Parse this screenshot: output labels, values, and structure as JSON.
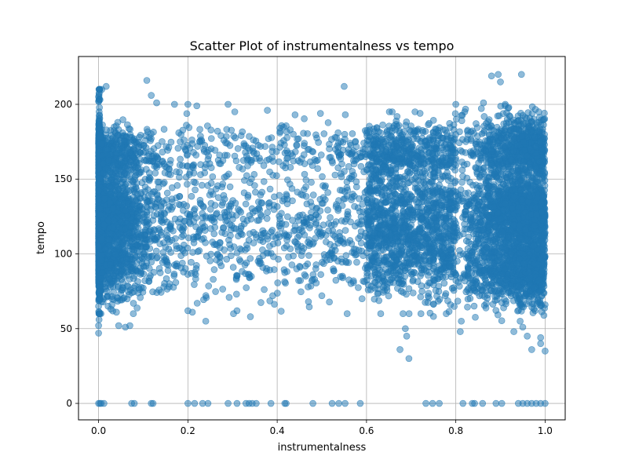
{
  "chart_data": {
    "type": "scatter",
    "title": "Scatter Plot of instrumentalness vs tempo",
    "xlabel": "instrumentalness",
    "ylabel": "tempo",
    "xlim": [
      -0.045,
      1.045
    ],
    "ylim": [
      -11,
      232
    ],
    "xticks": [
      0.0,
      0.2,
      0.4,
      0.6,
      0.8,
      1.0
    ],
    "xtick_labels": [
      "0.0",
      "0.2",
      "0.4",
      "0.6",
      "0.8",
      "1.0"
    ],
    "yticks": [
      0,
      50,
      100,
      150,
      200
    ],
    "ytick_labels": [
      "0",
      "50",
      "100",
      "150",
      "200"
    ],
    "grid": true,
    "legend": "none",
    "marker_color": "#1f77b4",
    "marker_alpha": 0.5,
    "series": [
      {
        "points": [
          [
            0.0,
            0
          ],
          [
            0.003,
            0
          ],
          [
            0.006,
            0
          ],
          [
            0.012,
            0
          ],
          [
            0.074,
            0
          ],
          [
            0.08,
            0
          ],
          [
            0.118,
            0
          ],
          [
            0.122,
            0
          ],
          [
            0.2,
            0
          ],
          [
            0.215,
            0
          ],
          [
            0.233,
            0
          ],
          [
            0.245,
            0
          ],
          [
            0.29,
            0
          ],
          [
            0.31,
            0
          ],
          [
            0.33,
            0
          ],
          [
            0.337,
            0
          ],
          [
            0.344,
            0
          ],
          [
            0.353,
            0
          ],
          [
            0.386,
            0
          ],
          [
            0.417,
            0
          ],
          [
            0.42,
            0
          ],
          [
            0.48,
            0
          ],
          [
            0.523,
            0
          ],
          [
            0.538,
            0
          ],
          [
            0.552,
            0
          ],
          [
            0.586,
            0
          ],
          [
            0.733,
            0
          ],
          [
            0.748,
            0
          ],
          [
            0.763,
            0
          ],
          [
            0.816,
            0
          ],
          [
            0.837,
            0
          ],
          [
            0.842,
            0
          ],
          [
            0.86,
            0
          ],
          [
            0.89,
            0
          ],
          [
            0.903,
            0
          ],
          [
            0.94,
            0
          ],
          [
            0.95,
            0
          ],
          [
            0.96,
            0
          ],
          [
            0.97,
            0
          ],
          [
            0.98,
            0
          ],
          [
            0.99,
            0
          ],
          [
            1.0,
            0
          ],
          [
            0.0,
            47
          ],
          [
            0.0,
            52
          ],
          [
            0.001,
            56
          ],
          [
            0.002,
            60
          ],
          [
            0.0,
            65
          ],
          [
            0.003,
            70
          ],
          [
            0.001,
            75
          ],
          [
            0.0,
            202
          ],
          [
            0.0,
            205
          ],
          [
            0.001,
            207
          ],
          [
            0.002,
            210
          ],
          [
            0.017,
            212
          ],
          [
            0.03,
            66
          ],
          [
            0.04,
            61
          ],
          [
            0.045,
            52
          ],
          [
            0.06,
            51
          ],
          [
            0.07,
            52
          ],
          [
            0.108,
            216
          ],
          [
            0.118,
            206
          ],
          [
            0.13,
            201
          ],
          [
            0.17,
            200
          ],
          [
            0.2,
            200
          ],
          [
            0.22,
            199
          ],
          [
            0.29,
            200
          ],
          [
            0.305,
            195
          ],
          [
            0.378,
            196
          ],
          [
            0.44,
            193
          ],
          [
            0.55,
            212
          ],
          [
            0.72,
            194
          ],
          [
            0.8,
            200
          ],
          [
            0.82,
            195
          ],
          [
            0.862,
            201
          ],
          [
            0.88,
            219
          ],
          [
            0.895,
            220
          ],
          [
            0.9,
            215
          ],
          [
            0.947,
            220
          ],
          [
            0.93,
            48
          ],
          [
            0.95,
            51
          ],
          [
            0.96,
            45
          ],
          [
            0.99,
            44
          ],
          [
            1.0,
            35
          ],
          [
            0.97,
            36
          ],
          [
            0.99,
            40
          ],
          [
            0.675,
            36
          ],
          [
            0.69,
            45
          ],
          [
            0.695,
            30
          ],
          [
            0.687,
            50
          ],
          [
            0.81,
            48
          ],
          [
            0.2,
            62
          ],
          [
            0.21,
            61
          ],
          [
            0.24,
            55
          ],
          [
            0.31,
            62
          ],
          [
            0.34,
            58
          ],
          [
            0.39,
            72
          ],
          [
            0.47,
            68
          ],
          [
            0.5,
            72
          ],
          [
            0.59,
            70
          ]
        ]
      }
    ]
  }
}
